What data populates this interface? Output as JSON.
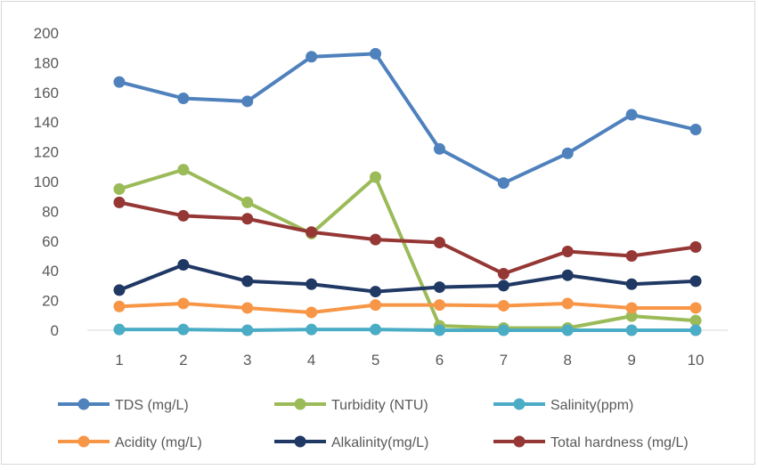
{
  "chart_data": {
    "type": "line",
    "title": "",
    "xlabel": "",
    "ylabel": "",
    "categories": [
      "1",
      "2",
      "3",
      "4",
      "5",
      "6",
      "7",
      "8",
      "9",
      "10"
    ],
    "ylim": [
      0,
      200
    ],
    "yticks": [
      "0",
      "20",
      "40",
      "60",
      "80",
      "100",
      "120",
      "140",
      "160",
      "180",
      "200"
    ],
    "grid": false,
    "legend_position": "bottom",
    "series": [
      {
        "name": "TDS (mg/L)",
        "color": "#4F81BD",
        "values": [
          167,
          156,
          154,
          184,
          186,
          122,
          99,
          119,
          145,
          135
        ]
      },
      {
        "name": "Turbidity (NTU)",
        "color": "#9BBB59",
        "values": [
          95,
          108,
          86,
          65,
          103,
          3,
          1.5,
          1.5,
          9.5,
          6.5
        ]
      },
      {
        "name": "Salinity(ppm)",
        "color": "#4BACC6",
        "values": [
          0.5,
          0.5,
          0,
          0.5,
          0.5,
          0,
          0,
          0,
          0,
          0
        ]
      },
      {
        "name": "Acidity (mg/L)",
        "color": "#F79646",
        "values": [
          16,
          18,
          15,
          12,
          17,
          17,
          16.5,
          18,
          15,
          15
        ]
      },
      {
        "name": "Alkalinity(mg/L)",
        "color": "#1F3864",
        "values": [
          27,
          44,
          33,
          31,
          26,
          29,
          30,
          37,
          31,
          33
        ]
      },
      {
        "name": "Total hardness (mg/L)",
        "color": "#953735",
        "values": [
          86,
          77,
          75,
          66,
          61,
          59,
          38,
          53,
          50,
          56
        ]
      }
    ]
  }
}
